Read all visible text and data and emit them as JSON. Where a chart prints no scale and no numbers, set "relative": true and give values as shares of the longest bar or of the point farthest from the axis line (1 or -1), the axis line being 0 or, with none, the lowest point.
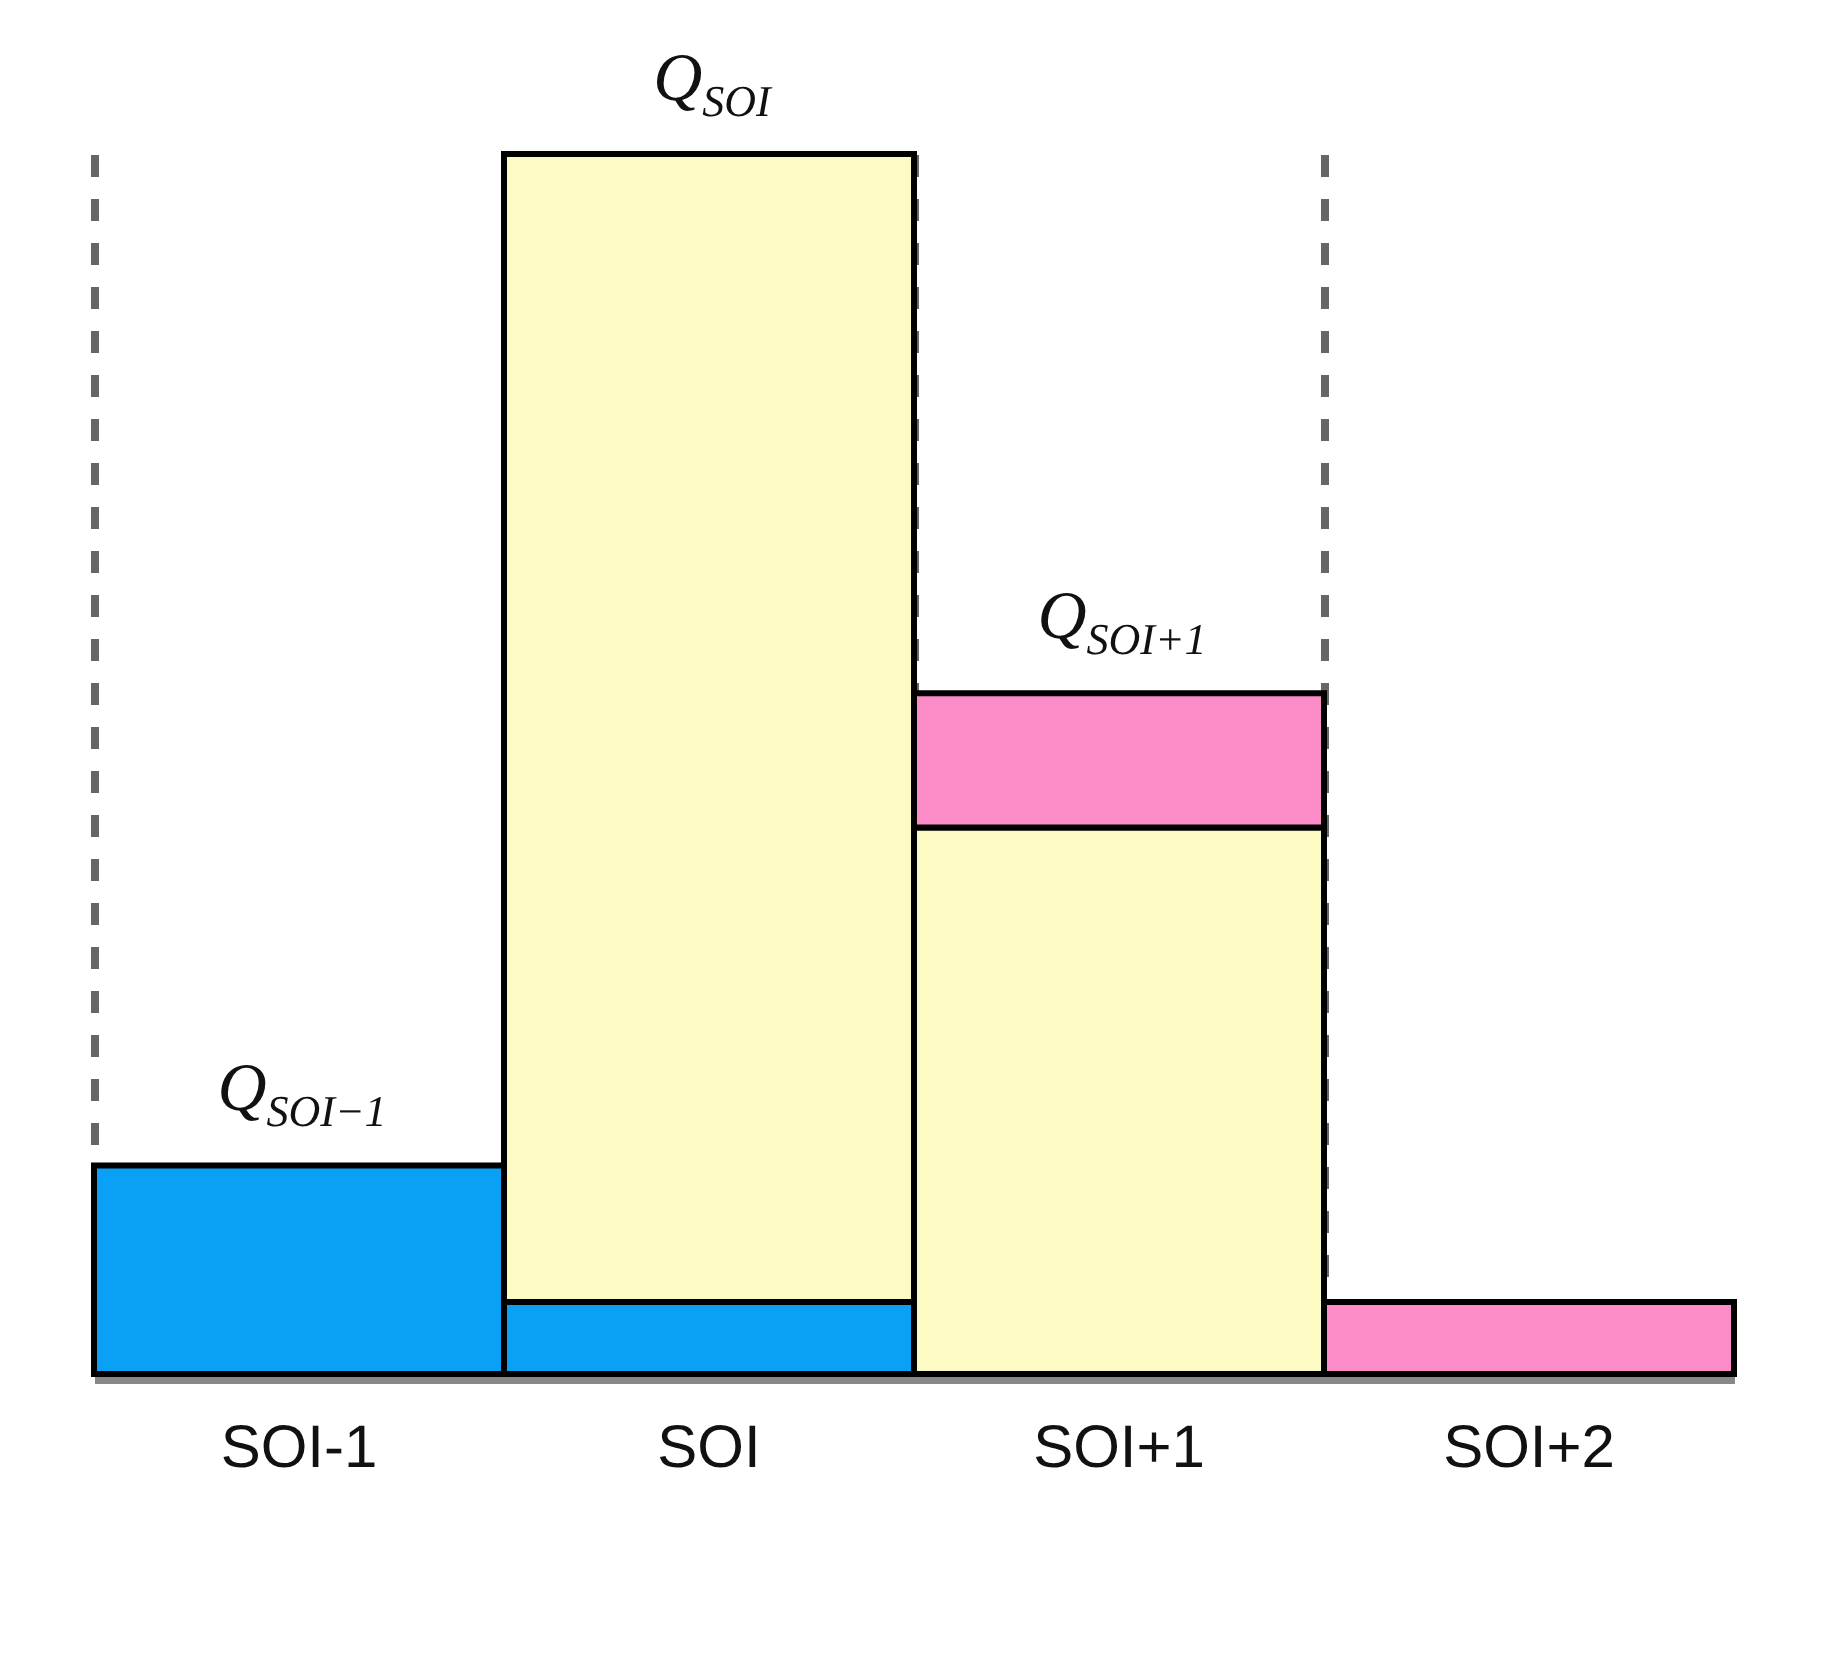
{
  "chart_data": {
    "type": "bar",
    "stacked": true,
    "relative": true,
    "grid": "x",
    "categories": [
      "SOI-1",
      "SOI",
      "SOI+1",
      "SOI+2"
    ],
    "series": [
      {
        "color": "#0aa0f5",
        "values": [
          0.171,
          0.059,
          null,
          null
        ]
      },
      {
        "color": "#fdfbc4",
        "values": [
          null,
          0.941,
          0.448,
          null
        ]
      },
      {
        "color": "#fc8cc8",
        "values": [
          null,
          null,
          0.11,
          0.059
        ]
      }
    ],
    "annotations": [
      {
        "text": "Q$_{SOI−1}$",
        "x": "SOI-1",
        "y": 0.171
      },
      {
        "text": "Q$_{SOI}$",
        "x": "SOI",
        "y": 1
      },
      {
        "text": "Q$_{SOI+1}$",
        "x": "SOI+1",
        "y": 0.559
      }
    ]
  }
}
